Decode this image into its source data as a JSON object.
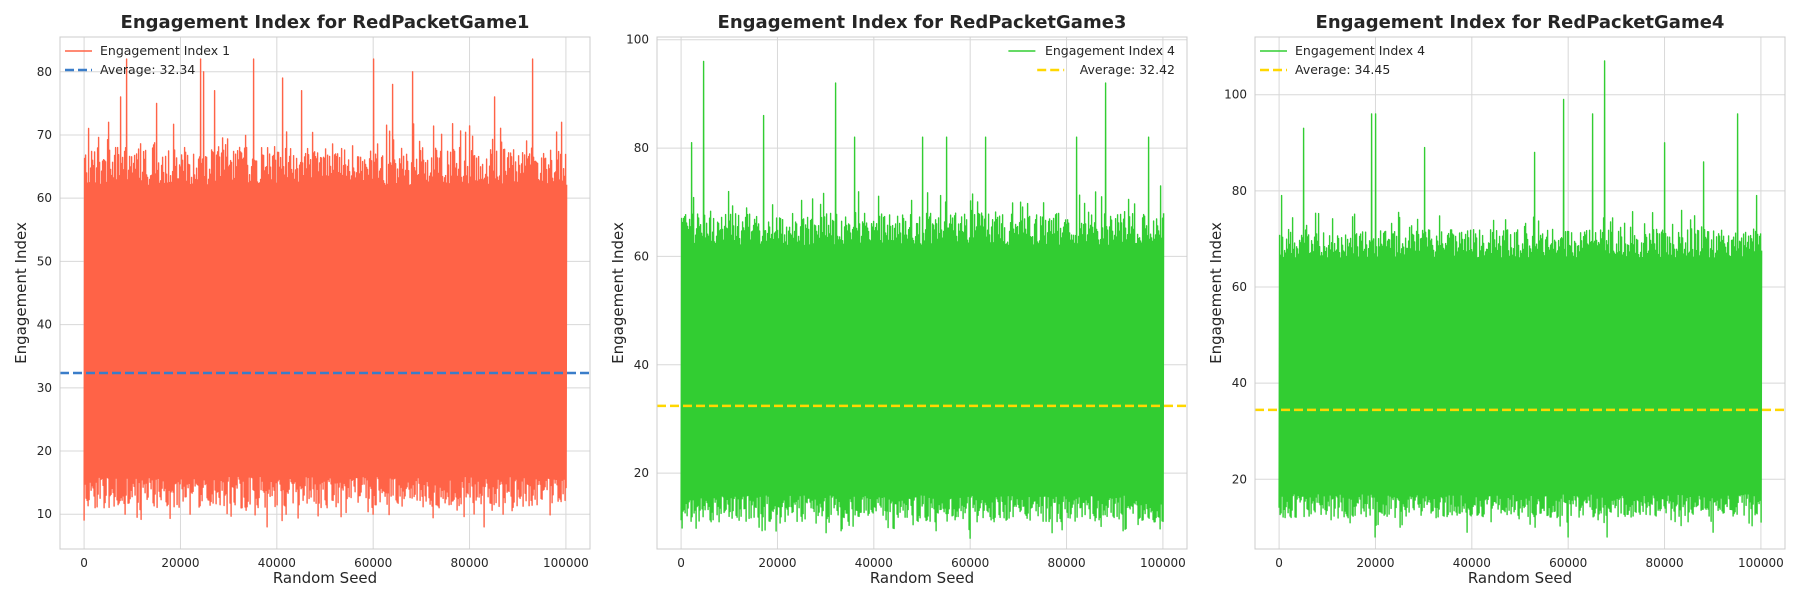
{
  "chart_data": [
    {
      "type": "line",
      "title": "Engagement Index for RedPacketGame1",
      "xlabel": "Random Seed",
      "ylabel": "Engagement Index",
      "xlim": [
        -5000,
        105000
      ],
      "ylim": [
        4.5,
        85.5
      ],
      "xticks": [
        0,
        20000,
        40000,
        60000,
        80000,
        100000
      ],
      "yticks": [
        10,
        20,
        30,
        40,
        50,
        60,
        70,
        80
      ],
      "grid": true,
      "legend_position": "top-left",
      "series": [
        {
          "name": "Engagement Index 1",
          "color": "#ff6347",
          "x_range": [
            0,
            100000
          ],
          "typical_range": [
            13,
            66
          ],
          "min": 8,
          "max": 82,
          "spike_highs": [
            [
              500,
              64
            ],
            [
              5000,
              72
            ],
            [
              7500,
              76
            ],
            [
              8800,
              82
            ],
            [
              15000,
              75
            ],
            [
              24000,
              82
            ],
            [
              24800,
              80
            ],
            [
              27000,
              77
            ],
            [
              35000,
              82
            ],
            [
              41000,
              79
            ],
            [
              45000,
              77
            ],
            [
              60000,
              82
            ],
            [
              64000,
              78
            ],
            [
              68000,
              80
            ],
            [
              85000,
              76
            ],
            [
              93000,
              82
            ],
            [
              99000,
              72
            ]
          ],
          "spike_lows": [
            [
              0,
              9
            ],
            [
              8500,
              10
            ],
            [
              22000,
              10
            ],
            [
              38000,
              8
            ],
            [
              41000,
              9
            ],
            [
              60000,
              10
            ],
            [
              83000,
              8
            ],
            [
              87000,
              10
            ],
            [
              99000,
              12
            ]
          ]
        },
        {
          "name": "Average: 32.34",
          "color": "#3a7dc9",
          "style": "dashed",
          "value": 32.34
        }
      ]
    },
    {
      "type": "line",
      "title": "Engagement Index for RedPacketGame3",
      "xlabel": "Random Seed",
      "ylabel": "Engagement Index",
      "xlim": [
        -5000,
        105000
      ],
      "ylim": [
        6,
        100.5
      ],
      "xticks": [
        0,
        20000,
        40000,
        60000,
        80000,
        100000
      ],
      "yticks": [
        20,
        40,
        60,
        80,
        100
      ],
      "grid": true,
      "legend_position": "top-right",
      "series": [
        {
          "name": "Engagement Index 4",
          "color": "#32cd32",
          "x_range": [
            0,
            100000
          ],
          "typical_range": [
            13,
            66
          ],
          "min": 8,
          "max": 96,
          "spike_highs": [
            [
              500,
              67
            ],
            [
              2000,
              81
            ],
            [
              4500,
              96
            ],
            [
              17000,
              86
            ],
            [
              32000,
              92
            ],
            [
              36000,
              82
            ],
            [
              50000,
              82
            ],
            [
              55000,
              82
            ],
            [
              63000,
              82
            ],
            [
              82000,
              82
            ],
            [
              88000,
              92
            ],
            [
              97000,
              82
            ],
            [
              99500,
              73
            ]
          ],
          "spike_lows": [
            [
              500,
              13
            ],
            [
              30000,
              9
            ],
            [
              60000,
              8
            ],
            [
              77000,
              9
            ],
            [
              99000,
              12
            ]
          ]
        },
        {
          "name": "Average: 32.42",
          "color": "#ffd700",
          "style": "dashed",
          "value": 32.42
        }
      ]
    },
    {
      "type": "line",
      "title": "Engagement Index for RedPacketGame4",
      "xlabel": "Random Seed",
      "ylabel": "Engagement Index",
      "xlim": [
        -5000,
        105000
      ],
      "ylim": [
        5.5,
        112
      ],
      "xticks": [
        0,
        20000,
        40000,
        60000,
        80000,
        100000
      ],
      "yticks": [
        20,
        40,
        60,
        80,
        100
      ],
      "grid": true,
      "legend_position": "top-left",
      "series": [
        {
          "name": "Engagement Index 4",
          "color": "#32cd32",
          "x_range": [
            0,
            100000
          ],
          "typical_range": [
            14,
            70
          ],
          "min": 7,
          "max": 107,
          "spike_highs": [
            [
              500,
              79
            ],
            [
              5000,
              93
            ],
            [
              19000,
              96
            ],
            [
              20000,
              96
            ],
            [
              30000,
              89
            ],
            [
              53000,
              88
            ],
            [
              59000,
              99
            ],
            [
              65000,
              96
            ],
            [
              67500,
              107
            ],
            [
              80000,
              90
            ],
            [
              88000,
              86
            ],
            [
              95000,
              96
            ],
            [
              99000,
              79
            ]
          ],
          "spike_lows": [
            [
              500,
              13
            ],
            [
              20000,
              8
            ],
            [
              39000,
              9
            ],
            [
              60000,
              8
            ],
            [
              68000,
              8
            ],
            [
              90000,
              9
            ],
            [
              99000,
              13
            ]
          ]
        },
        {
          "name": "Average: 34.45",
          "color": "#ffd700",
          "style": "dashed",
          "value": 34.45
        }
      ]
    }
  ]
}
